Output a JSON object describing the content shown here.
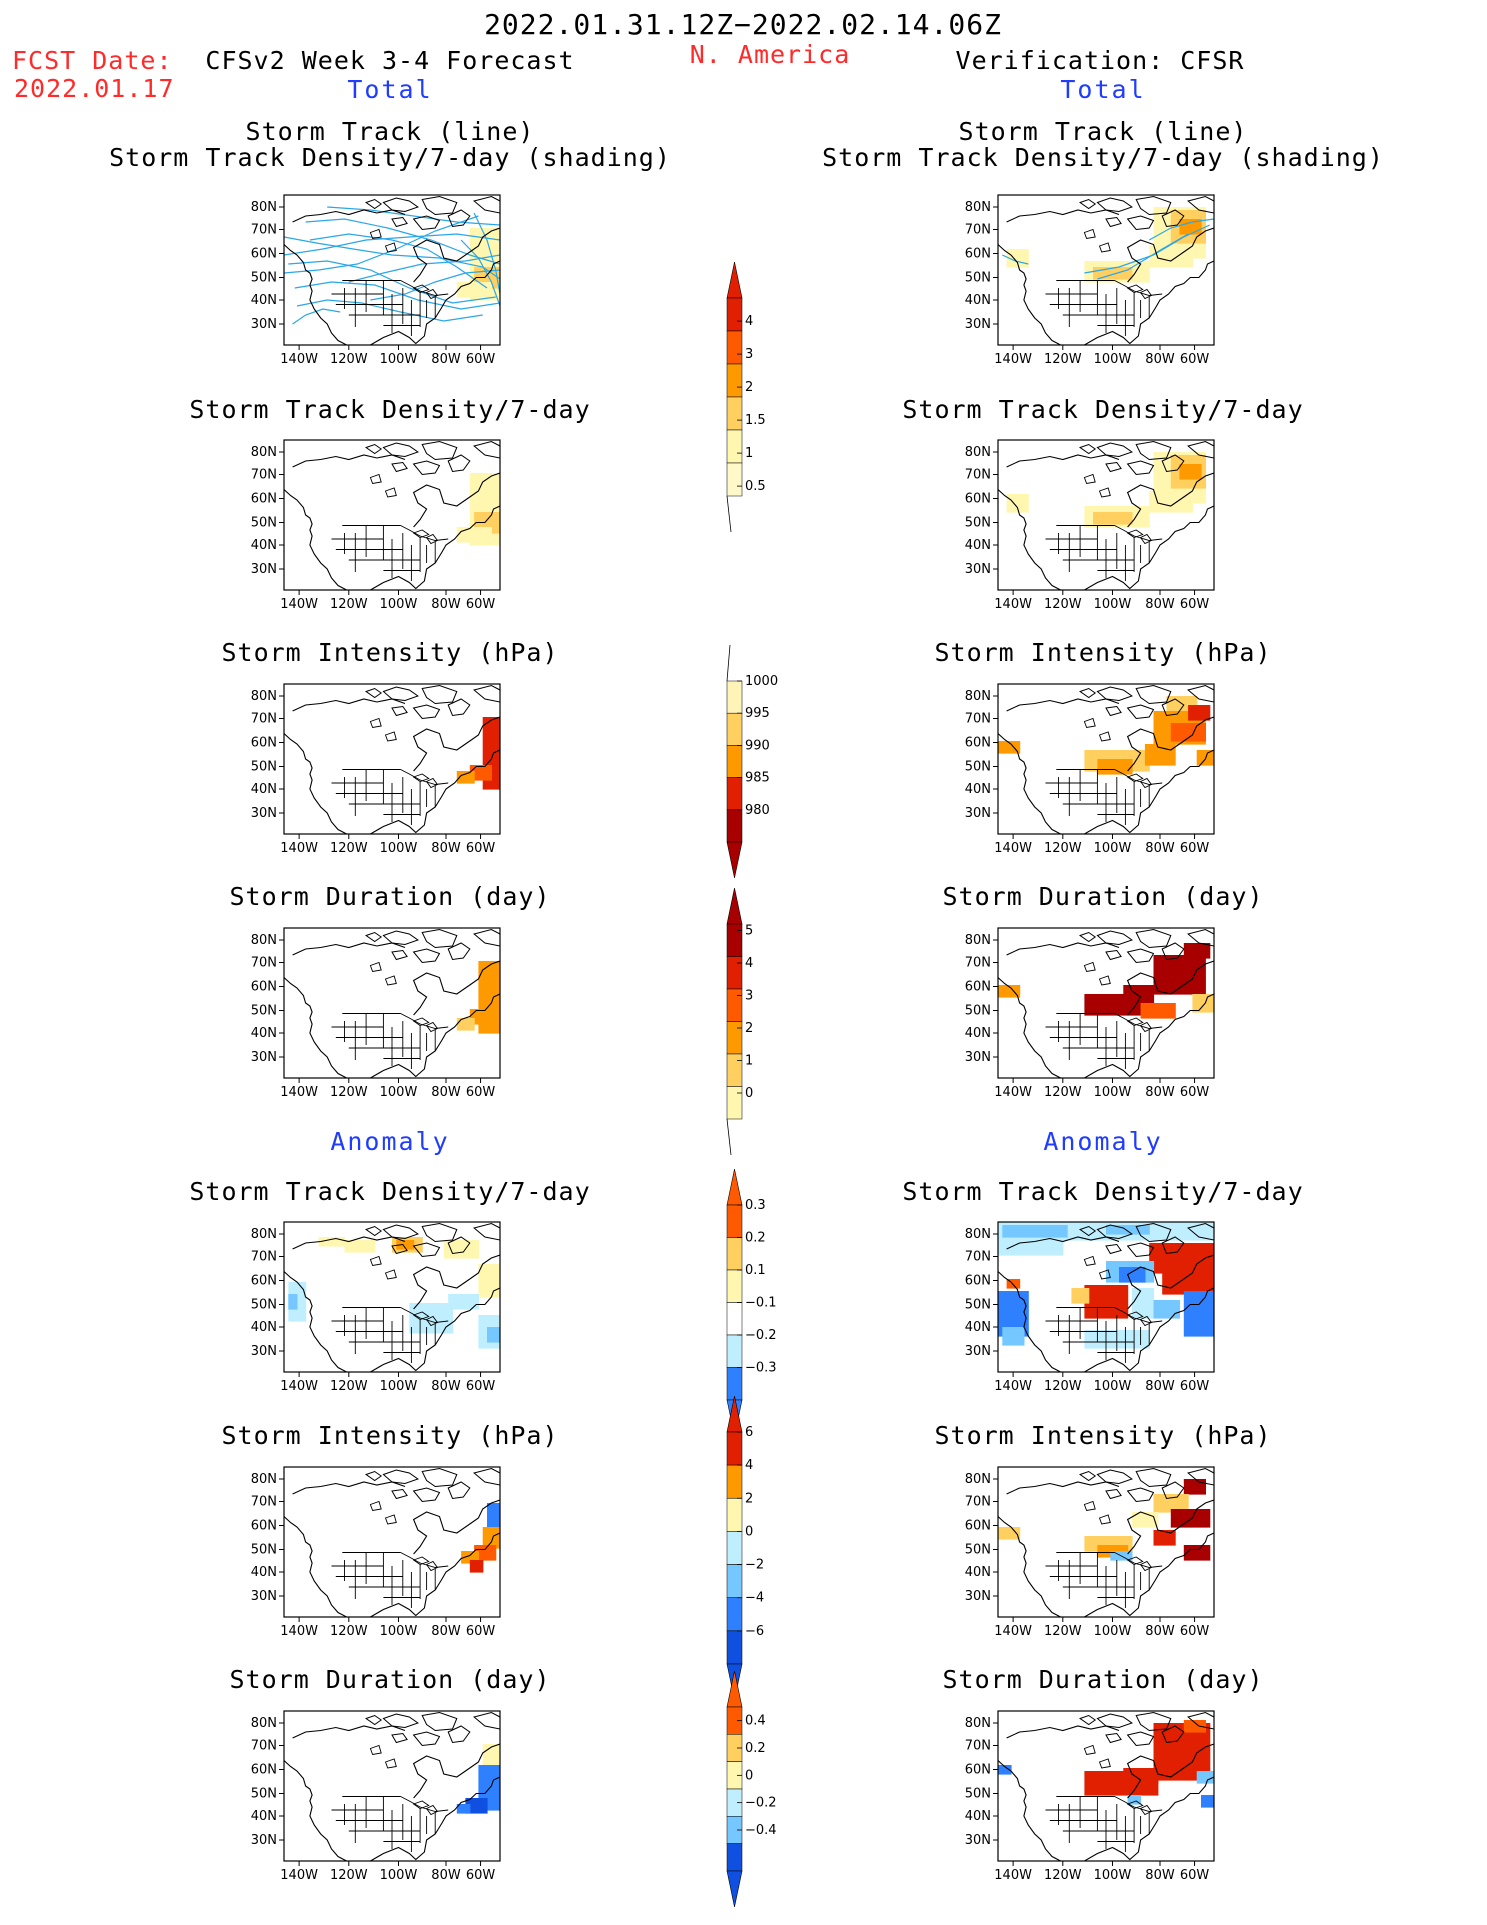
{
  "header": {
    "date_range": "2022.01.31.12Z−2022.02.14.06Z",
    "fcst_label": "FCST Date:",
    "fcst_date": "2022.01.17",
    "model_title": "CFSv2 Week 3-4 Forecast",
    "region": "N. America",
    "verification": "Verification: CFSR"
  },
  "sections": {
    "total_left": "Total",
    "total_right": "Total",
    "anomaly_left": "Anomaly",
    "anomaly_right": "Anomaly"
  },
  "panels": {
    "track_line": "Storm Track (line)",
    "track_shading": "Storm Track Density/7-day (shading)",
    "density": "Storm Track Density/7-day",
    "intensity": "Storm Intensity (hPa)",
    "duration": "Storm Duration (day)"
  },
  "map_axis": {
    "lat_labels": [
      "80N",
      "70N",
      "60N",
      "50N",
      "40N",
      "30N"
    ],
    "lon_labels": [
      "140W",
      "120W",
      "100W",
      "80W",
      "60W"
    ]
  },
  "colorbars": {
    "density_total": {
      "ticks": [
        "4",
        "3",
        "2",
        "1.5",
        "1",
        "0.5"
      ]
    },
    "intensity_total": {
      "ticks": [
        "1000",
        "995",
        "990",
        "985",
        "980"
      ]
    },
    "duration_total": {
      "ticks": [
        "5",
        "4",
        "3",
        "2",
        "1",
        "0"
      ]
    },
    "density_anom": {
      "ticks": [
        "0.3",
        "0.2",
        "0.1",
        "−0.1",
        "−0.2",
        "−0.3"
      ]
    },
    "intensity_anom": {
      "ticks": [
        "6",
        "4",
        "2",
        "0",
        "−2",
        "−4",
        "−6"
      ]
    },
    "duration_anom": {
      "ticks": [
        "0.4",
        "0.2",
        "0",
        "−0.2",
        "−0.4"
      ]
    }
  },
  "colors": {
    "warm": [
      "#fff6b0",
      "#ffd060",
      "#ff9900",
      "#ff5a00",
      "#e02000",
      "#a80000"
    ],
    "cool": [
      "#bfefff",
      "#74c8ff",
      "#2f80ff",
      "#1050e0"
    ],
    "track_lines": "#2aa7e8"
  }
}
